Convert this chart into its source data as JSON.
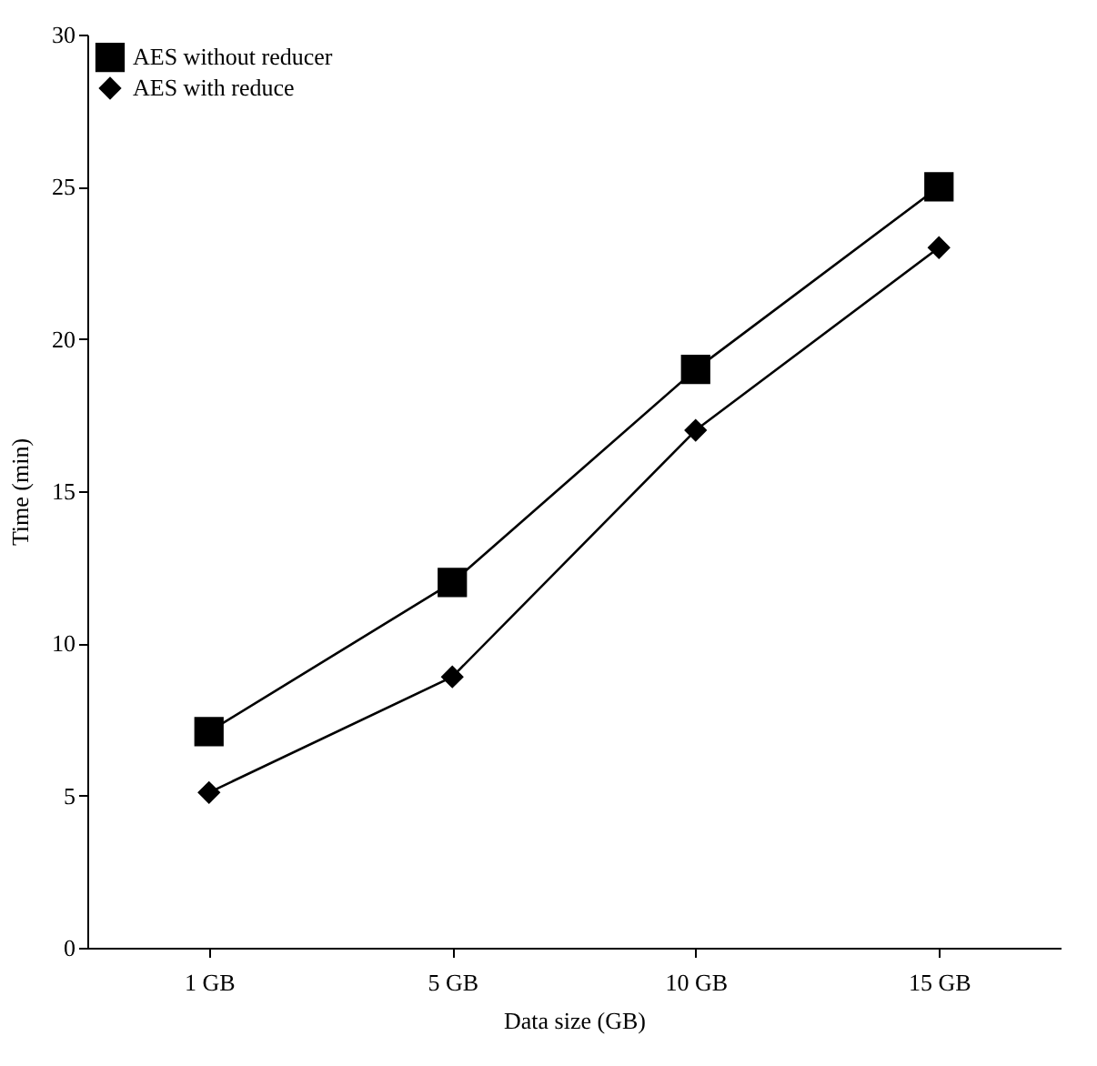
{
  "chart_data": {
    "type": "line",
    "xlabel": "Data size (GB)",
    "ylabel": "Time (min)",
    "categories": [
      "1 GB",
      "5 GB",
      "10 GB",
      "15 GB"
    ],
    "series": [
      {
        "name": "AES without reducer",
        "color": "#000000",
        "marker": "square",
        "values": [
          7.1,
          12.0,
          19.0,
          25.0
        ]
      },
      {
        "name": "AES with reduce",
        "color": "#000000",
        "marker": "diamond",
        "values": [
          5.1,
          8.9,
          17.0,
          23.0
        ]
      }
    ],
    "ylim": [
      0,
      30
    ],
    "yticks": [
      0,
      5,
      10,
      15,
      20,
      25,
      30
    ],
    "grid": false,
    "legend": "top left",
    "line_style": "solid"
  }
}
